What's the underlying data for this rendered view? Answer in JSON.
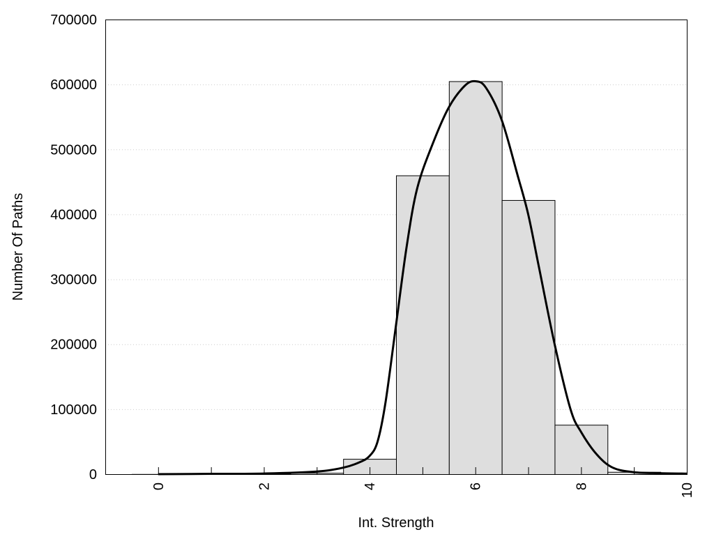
{
  "chart_data": {
    "type": "bar",
    "title": "",
    "xlabel": "Int. Strength",
    "ylabel": "Number Of Paths",
    "xlim": [
      -1,
      10
    ],
    "ylim": [
      0,
      700000
    ],
    "grid": "horizontal dotted",
    "x_ticks": [
      0,
      2,
      4,
      6,
      8,
      10
    ],
    "x_tick_labels": [
      "0",
      "2",
      "4",
      "6",
      "8",
      "10"
    ],
    "x_minor_ticks": [
      0,
      1,
      2,
      3,
      4,
      5,
      6,
      7,
      8,
      9,
      10
    ],
    "y_ticks": [
      0,
      100000,
      200000,
      300000,
      400000,
      500000,
      600000,
      700000
    ],
    "y_tick_labels": [
      "0",
      "100000",
      "200000",
      "300000",
      "400000",
      "500000",
      "600000",
      "700000"
    ],
    "bar_width": 1,
    "bar_color": "#dedede",
    "categories": [
      0,
      1,
      2,
      3,
      4,
      5,
      6,
      7,
      8,
      9,
      10
    ],
    "values": [
      200,
      500,
      1000,
      2000,
      23500,
      460000,
      605000,
      422000,
      76000,
      3500,
      1500
    ],
    "curve": {
      "color": "#000000",
      "x": [
        0,
        1,
        2,
        3,
        3.5,
        3.8,
        4,
        4.15,
        4.3,
        4.5,
        4.7,
        4.9,
        5.2,
        5.5,
        5.8,
        6,
        6.2,
        6.5,
        6.8,
        7,
        7.2,
        7.5,
        7.8,
        8,
        8.3,
        8.6,
        9,
        9.5,
        10
      ],
      "y": [
        0,
        500,
        1000,
        4000,
        10000,
        18000,
        28000,
        50000,
        110000,
        230000,
        350000,
        440000,
        510000,
        565000,
        598000,
        605000,
        595000,
        545000,
        460000,
        400000,
        320000,
        200000,
        100000,
        65000,
        30000,
        10000,
        3000,
        1500,
        800
      ]
    }
  }
}
